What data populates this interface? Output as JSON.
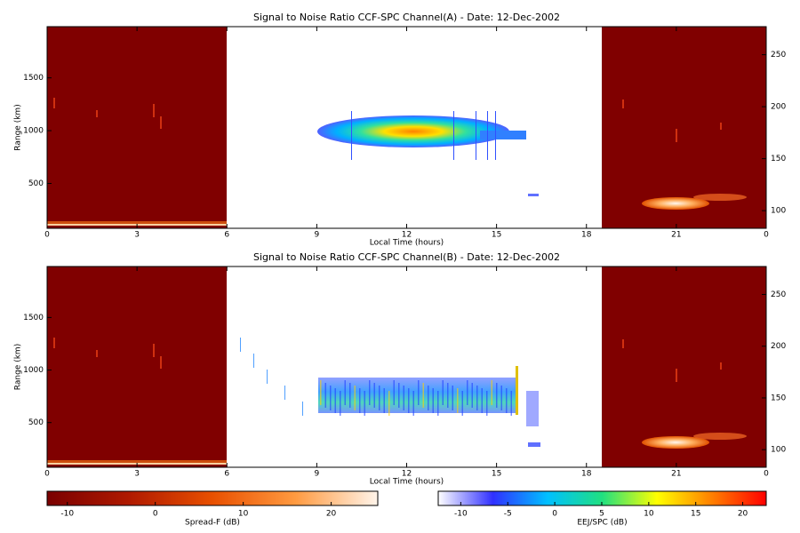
{
  "chart_data": [
    {
      "type": "heatmap",
      "title": "Signal to Noise Ratio CCF-SPC Channel(A) - Date: 12-Dec-2002",
      "xlabel": "Local Time (hours)",
      "ylabel": "Range (km)",
      "xlim": [
        0,
        24
      ],
      "xticks": [
        0,
        3,
        6,
        9,
        12,
        15,
        18,
        21,
        {
          "value": 24,
          "label": "0"
        }
      ],
      "ylim": [
        75,
        1985
      ],
      "yticks": [
        500,
        1000,
        1500
      ],
      "y2lim": [
        83,
        277
      ],
      "y2ticks": [
        100,
        150,
        200,
        250
      ]
    },
    {
      "type": "heatmap",
      "title": "Signal to Noise Ratio CCF-SPC Channel(B) - Date: 12-Dec-2002",
      "xlabel": "Local Time (hours)",
      "ylabel": "Range (km)",
      "xlim": [
        0,
        24
      ],
      "xticks": [
        0,
        3,
        6,
        9,
        12,
        15,
        18,
        21,
        {
          "value": 24,
          "label": "0"
        }
      ],
      "ylim": [
        75,
        1985
      ],
      "yticks": [
        500,
        1000,
        1500
      ],
      "y2lim": [
        83,
        277
      ],
      "y2ticks": [
        100,
        150,
        200,
        250
      ]
    }
  ],
  "colorbars": [
    {
      "label": "Spread-F (dB)",
      "lim": [
        -12.3,
        25.3
      ],
      "ticks": [
        -10,
        0,
        10,
        20
      ],
      "colors": [
        "#7a0000",
        "#b01a00",
        "#e85000",
        "#ff9a40",
        "#fff4ea"
      ]
    },
    {
      "label": "EEJ/SPC (dB)",
      "lim": [
        -12.4,
        22.5
      ],
      "ticks": [
        -10,
        -5,
        0,
        5,
        10,
        15,
        20
      ],
      "colors": [
        "#ffffff",
        "#3030ff",
        "#00c0ff",
        "#20e080",
        "#ffff00",
        "#ff8000",
        "#ff0000"
      ]
    }
  ]
}
